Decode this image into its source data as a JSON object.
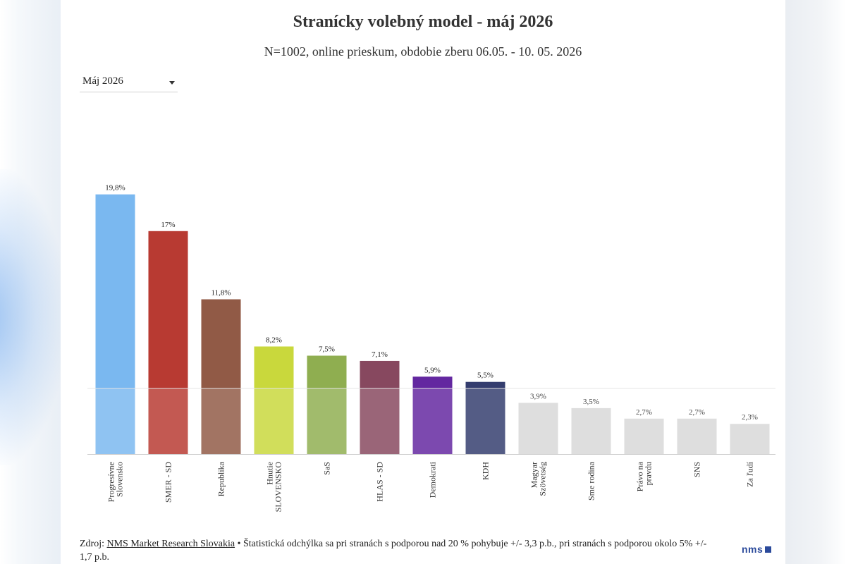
{
  "title": "Stranícky volebný model - máj 2026",
  "subtitle": "N=1002, online prieskum, obdobie zberu 06.05. - 10. 05. 2026",
  "month_select": {
    "value": "Máj 2026"
  },
  "footer": {
    "source_prefix": "Zdroj: ",
    "source_link": "NMS Market Research Slovakia",
    "note": " • Štatistická odchýlka sa pri stranách s podporou nad 20 % pohybuje +/- 3,3 p.b., pri stranách s podporou okolo 5% +/- 1,7 p.b."
  },
  "logo_text": "nms",
  "chart_data": {
    "type": "bar",
    "title": "Stranícky volebný model - máj 2026",
    "subtitle": "N=1002, online prieskum, obdobie zberu 06.05. - 10. 05. 2026",
    "xlabel": "",
    "ylabel": "",
    "ylim": [
      0,
      20
    ],
    "threshold": 5,
    "grid": false,
    "categories": [
      "Progresívne Slovensko",
      "SMER - SD",
      "Republika",
      "Hnutie SLOVENSKO",
      "SaS",
      "HLAS - SD",
      "Demokrati",
      "KDH",
      "Magyar Szövetség",
      "Sme rodina",
      "Právo na pravdu",
      "SNS",
      "Za ľudí"
    ],
    "category_lines": [
      [
        "Progresívne",
        "Slovensko"
      ],
      [
        "SMER - SD"
      ],
      [
        "Republika"
      ],
      [
        "Hnutie",
        "SLOVENSKO"
      ],
      [
        "SaS"
      ],
      [
        "HLAS - SD"
      ],
      [
        "Demokrati"
      ],
      [
        "KDH"
      ],
      [
        "Magyar",
        "Szövetség"
      ],
      [
        "Sme rodina"
      ],
      [
        "Právo na",
        "pravdu"
      ],
      [
        "SNS"
      ],
      [
        "Za ľudí"
      ]
    ],
    "values": [
      19.8,
      17,
      11.8,
      8.2,
      7.5,
      7.1,
      5.9,
      5.5,
      3.9,
      3.5,
      2.7,
      2.7,
      2.3
    ],
    "value_labels": [
      "19,8%",
      "17%",
      "11,8%",
      "8,2%",
      "7,5%",
      "7,1%",
      "5,9%",
      "5,5%",
      "3,9%",
      "3,5%",
      "2,7%",
      "2,7%",
      "2,3%"
    ],
    "colors": [
      "#7ab8f0",
      "#b83a32",
      "#915a46",
      "#c9d83c",
      "#8fae50",
      "#87485f",
      "#6327a0",
      "#343d6e",
      "#d8d8d8",
      "#d8d8d8",
      "#d8d8d8",
      "#d8d8d8",
      "#d8d8d8"
    ]
  }
}
